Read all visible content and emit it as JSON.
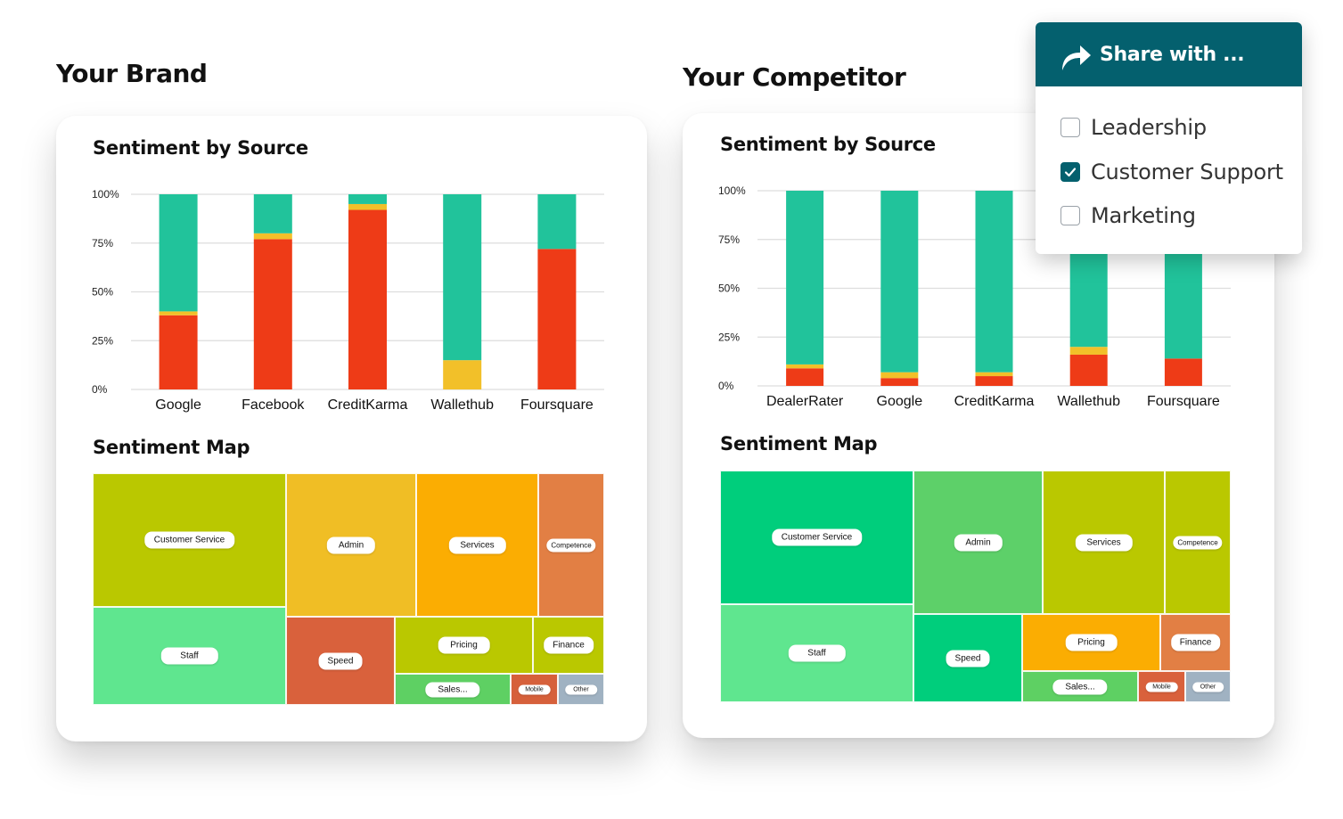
{
  "brand": {
    "title": "Your Brand",
    "sentiment_title": "Sentiment by Source",
    "map_title": "Sentiment Map",
    "map_cells": [
      {
        "label": "Customer Service",
        "color": "#bac800"
      },
      {
        "label": "Admin",
        "color": "#f0be25"
      },
      {
        "label": "Services",
        "color": "#fbad02"
      },
      {
        "label": "Competence",
        "color": "#e27f44"
      },
      {
        "label": "Staff",
        "color": "#5fe68f"
      },
      {
        "label": "Speed",
        "color": "#d9613c"
      },
      {
        "label": "Pricing",
        "color": "#bac800"
      },
      {
        "label": "Finance",
        "color": "#bac800"
      },
      {
        "label": "Sales...",
        "color": "#5ed063"
      },
      {
        "label": "Mobile",
        "color": "#d6603b"
      },
      {
        "label": "Other",
        "color": "#a0b2c2"
      }
    ]
  },
  "competitor": {
    "title": "Your Competitor",
    "sentiment_title": "Sentiment by Source",
    "map_title": "Sentiment Map",
    "map_cells": [
      {
        "label": "Customer Service",
        "color": "#00ce7c"
      },
      {
        "label": "Admin",
        "color": "#5dd069"
      },
      {
        "label": "Services",
        "color": "#bac800"
      },
      {
        "label": "Competence",
        "color": "#bac800"
      },
      {
        "label": "Staff",
        "color": "#5fe68f"
      },
      {
        "label": "Speed",
        "color": "#00ce7c"
      },
      {
        "label": "Pricing",
        "color": "#fbad02"
      },
      {
        "label": "Finance",
        "color": "#e27f44"
      },
      {
        "label": "Sales...",
        "color": "#5ed063"
      },
      {
        "label": "Mobile",
        "color": "#d9613c"
      },
      {
        "label": "Other",
        "color": "#a0b2c2"
      }
    ]
  },
  "share": {
    "label": "Share with ...",
    "icon": "share-arrow-icon",
    "options": [
      {
        "label": "Leadership",
        "checked": false
      },
      {
        "label": "Customer Support",
        "checked": true
      },
      {
        "label": "Marketing",
        "checked": false
      }
    ]
  },
  "colors": {
    "negative": "#ee3b17",
    "neutral": "#f2c029",
    "positive": "#21c39b",
    "gridline": "#dddddd",
    "share_header": "#04606e"
  },
  "chart_data": [
    {
      "type": "bar",
      "stacked": true,
      "title": "Sentiment by Source",
      "categories": [
        "Google",
        "Facebook",
        "CreditKarma",
        "Wallethub",
        "Foursquare"
      ],
      "series": [
        {
          "values": [
            38,
            77,
            92,
            0,
            72
          ]
        },
        {
          "values": [
            2,
            3,
            3,
            15,
            0
          ]
        },
        {
          "values": [
            60,
            20,
            5,
            85,
            28
          ]
        }
      ],
      "ylim": [
        0,
        100
      ],
      "yticks": [
        "0%",
        "25%",
        "50%",
        "75%",
        "100%"
      ],
      "grid": true
    },
    {
      "type": "bar",
      "stacked": true,
      "title": "Sentiment by Source",
      "categories": [
        "DealerRater",
        "Google",
        "CreditKarma",
        "Wallethub",
        "Foursquare"
      ],
      "series": [
        {
          "values": [
            9,
            4,
            5,
            16,
            14
          ]
        },
        {
          "values": [
            2,
            3,
            2,
            4,
            0
          ]
        },
        {
          "values": [
            89,
            93,
            93,
            80,
            86
          ]
        }
      ],
      "ylim": [
        0,
        100
      ],
      "yticks": [
        "0%",
        "25%",
        "50%",
        "75%",
        "100%"
      ],
      "grid": true
    }
  ]
}
